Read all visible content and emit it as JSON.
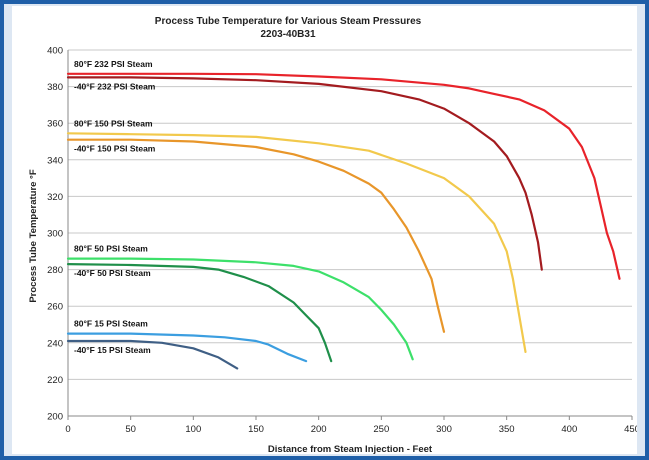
{
  "chart_data": {
    "type": "line",
    "title": "Process Tube Temperature for Various Steam Pressures",
    "subtitle": "2203-40B31",
    "xlabel": "Distance from Steam Injection - Feet",
    "ylabel": "Process Tube Temperature °F",
    "xlim": [
      0,
      450
    ],
    "ylim": [
      200,
      400
    ],
    "x_ticks": [
      0,
      50,
      100,
      150,
      200,
      250,
      300,
      350,
      400,
      450
    ],
    "y_ticks": [
      200,
      220,
      240,
      260,
      280,
      300,
      320,
      340,
      360,
      380,
      400
    ],
    "grid": "horizontal",
    "series": [
      {
        "name": "80°F  232 PSI Steam",
        "color": "#e8232a",
        "points": [
          [
            0,
            387
          ],
          [
            50,
            387
          ],
          [
            100,
            387
          ],
          [
            150,
            386.8
          ],
          [
            200,
            385.5
          ],
          [
            250,
            384
          ],
          [
            300,
            381
          ],
          [
            320,
            379
          ],
          [
            340,
            376
          ],
          [
            360,
            373
          ],
          [
            380,
            367
          ],
          [
            400,
            357
          ],
          [
            410,
            347
          ],
          [
            420,
            330
          ],
          [
            425,
            315
          ],
          [
            430,
            300
          ],
          [
            435,
            290
          ],
          [
            440,
            275
          ]
        ]
      },
      {
        "name": "-40°F  232 PSI Steam",
        "color": "#a31b1f",
        "points": [
          [
            0,
            385
          ],
          [
            50,
            385
          ],
          [
            100,
            384.5
          ],
          [
            150,
            383.5
          ],
          [
            200,
            381.5
          ],
          [
            250,
            377.5
          ],
          [
            280,
            373
          ],
          [
            300,
            368
          ],
          [
            320,
            360
          ],
          [
            340,
            350
          ],
          [
            350,
            342
          ],
          [
            360,
            330
          ],
          [
            365,
            322
          ],
          [
            370,
            310
          ],
          [
            375,
            295
          ],
          [
            378,
            280
          ]
        ]
      },
      {
        "name": "80°F  150 PSI Steam",
        "color": "#f2c94c",
        "points": [
          [
            0,
            354.5
          ],
          [
            50,
            354
          ],
          [
            100,
            353.5
          ],
          [
            150,
            352.5
          ],
          [
            200,
            349
          ],
          [
            240,
            345
          ],
          [
            270,
            338
          ],
          [
            300,
            330
          ],
          [
            320,
            320
          ],
          [
            340,
            305
          ],
          [
            350,
            290
          ],
          [
            355,
            275
          ],
          [
            360,
            255
          ],
          [
            365,
            235
          ]
        ]
      },
      {
        "name": "-40°F  150 PSI Steam",
        "color": "#e8962a",
        "points": [
          [
            0,
            351
          ],
          [
            50,
            351
          ],
          [
            100,
            350
          ],
          [
            150,
            347
          ],
          [
            180,
            343
          ],
          [
            200,
            339
          ],
          [
            220,
            334
          ],
          [
            240,
            327
          ],
          [
            250,
            322
          ],
          [
            260,
            313
          ],
          [
            270,
            303
          ],
          [
            280,
            290
          ],
          [
            290,
            275
          ],
          [
            295,
            260
          ],
          [
            300,
            246
          ]
        ]
      },
      {
        "name": "80°F  50 PSI Steam",
        "color": "#3de06a",
        "points": [
          [
            0,
            286
          ],
          [
            50,
            286
          ],
          [
            100,
            285.5
          ],
          [
            150,
            284
          ],
          [
            180,
            282
          ],
          [
            200,
            279
          ],
          [
            220,
            273
          ],
          [
            240,
            265
          ],
          [
            250,
            258
          ],
          [
            260,
            250
          ],
          [
            270,
            240
          ],
          [
            275,
            231
          ]
        ]
      },
      {
        "name": "-40°F  50 PSI Steam",
        "color": "#1f8f4a",
        "points": [
          [
            0,
            283
          ],
          [
            50,
            282.5
          ],
          [
            100,
            281.5
          ],
          [
            120,
            280
          ],
          [
            140,
            276
          ],
          [
            160,
            271
          ],
          [
            180,
            262
          ],
          [
            190,
            255
          ],
          [
            200,
            248
          ],
          [
            205,
            240
          ],
          [
            210,
            230
          ]
        ]
      },
      {
        "name": "80°F  15 PSI Steam",
        "color": "#3b9ee0",
        "points": [
          [
            0,
            245
          ],
          [
            50,
            245
          ],
          [
            100,
            244
          ],
          [
            125,
            243
          ],
          [
            150,
            241
          ],
          [
            160,
            239
          ],
          [
            175,
            234
          ],
          [
            190,
            230
          ]
        ]
      },
      {
        "name": "-40°F  15 PSI Steam",
        "color": "#3f5f85",
        "points": [
          [
            0,
            241
          ],
          [
            50,
            241
          ],
          [
            75,
            240
          ],
          [
            100,
            237
          ],
          [
            120,
            232
          ],
          [
            135,
            226
          ]
        ]
      }
    ]
  }
}
